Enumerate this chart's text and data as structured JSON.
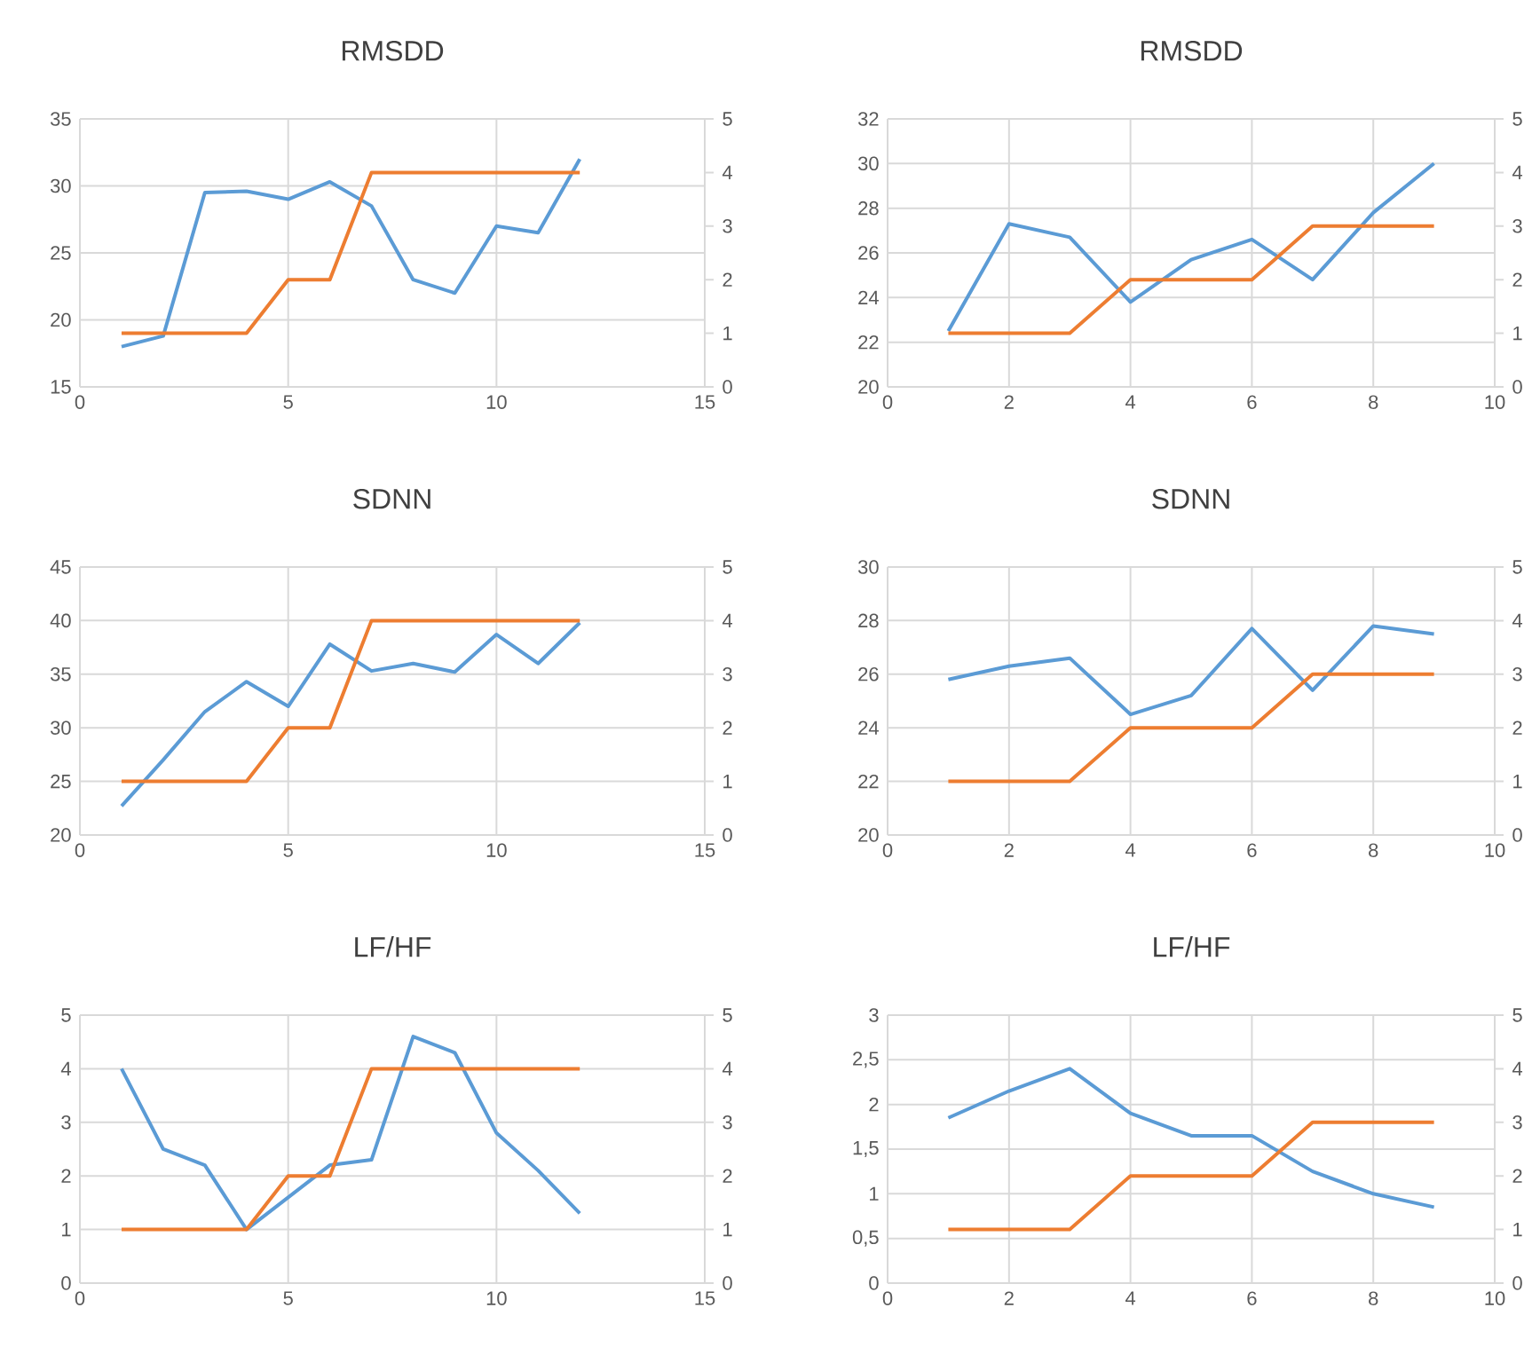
{
  "chart_data": [
    {
      "type": "line",
      "title": "RMSDD",
      "x": [
        1,
        2,
        3,
        4,
        5,
        6,
        7,
        8,
        9,
        10,
        11,
        12
      ],
      "xlim": [
        0,
        15
      ],
      "xticks": [
        0,
        5,
        10,
        15
      ],
      "ylim": [
        15,
        35
      ],
      "yticks": [
        15,
        20,
        25,
        30,
        35
      ],
      "y2lim": [
        0,
        5
      ],
      "y2ticks": [
        0,
        1,
        2,
        3,
        4,
        5
      ],
      "grid": true,
      "line_style": "solid",
      "series": [
        {
          "color": "#5b9bd5",
          "values": [
            18,
            18.8,
            29.5,
            29.6,
            29,
            30.3,
            28.5,
            23,
            22,
            27,
            26.5,
            32
          ]
        },
        {
          "color": "#ed7d31",
          "axis": "y2",
          "values": [
            1,
            1,
            1,
            1,
            2,
            2,
            4,
            4,
            4,
            4,
            4,
            4
          ]
        }
      ]
    },
    {
      "type": "line",
      "title": "RMSDD",
      "x": [
        1,
        2,
        3,
        4,
        5,
        6,
        7,
        8,
        9
      ],
      "xlim": [
        0,
        10
      ],
      "xticks": [
        0,
        2,
        4,
        6,
        8,
        10
      ],
      "ylim": [
        20,
        32
      ],
      "yticks": [
        20,
        22,
        24,
        26,
        28,
        30,
        32
      ],
      "y2lim": [
        0,
        5
      ],
      "y2ticks": [
        0,
        1,
        2,
        3,
        4,
        5
      ],
      "grid": true,
      "line_style": "solid",
      "series": [
        {
          "color": "#5b9bd5",
          "values": [
            22.5,
            27.3,
            26.7,
            23.8,
            25.7,
            26.6,
            24.8,
            27.8,
            30
          ]
        },
        {
          "color": "#ed7d31",
          "axis": "y2",
          "values": [
            1,
            1,
            1,
            2,
            2,
            2,
            3,
            3,
            3
          ]
        }
      ]
    },
    {
      "type": "line",
      "title": "SDNN",
      "x": [
        1,
        2,
        3,
        4,
        5,
        6,
        7,
        8,
        9,
        10,
        11,
        12
      ],
      "xlim": [
        0,
        15
      ],
      "xticks": [
        0,
        5,
        10,
        15
      ],
      "ylim": [
        20,
        45
      ],
      "yticks": [
        20,
        25,
        30,
        35,
        40,
        45
      ],
      "y2lim": [
        0,
        5
      ],
      "y2ticks": [
        0,
        1,
        2,
        3,
        4,
        5
      ],
      "grid": true,
      "line_style": "solid",
      "series": [
        {
          "color": "#5b9bd5",
          "values": [
            22.7,
            27,
            31.5,
            34.3,
            32,
            37.8,
            35.3,
            36,
            35.2,
            38.7,
            36,
            39.8
          ]
        },
        {
          "color": "#ed7d31",
          "axis": "y2",
          "values": [
            1,
            1,
            1,
            1,
            2,
            2,
            4,
            4,
            4,
            4,
            4,
            4
          ]
        }
      ]
    },
    {
      "type": "line",
      "title": "SDNN",
      "x": [
        1,
        2,
        3,
        4,
        5,
        6,
        7,
        8,
        9
      ],
      "xlim": [
        0,
        10
      ],
      "xticks": [
        0,
        2,
        4,
        6,
        8,
        10
      ],
      "ylim": [
        20,
        30
      ],
      "yticks": [
        20,
        22,
        24,
        26,
        28,
        30
      ],
      "y2lim": [
        0,
        5
      ],
      "y2ticks": [
        0,
        1,
        2,
        3,
        4,
        5
      ],
      "grid": true,
      "line_style": "solid",
      "series": [
        {
          "color": "#5b9bd5",
          "values": [
            25.8,
            26.3,
            26.6,
            24.5,
            25.2,
            27.7,
            25.4,
            27.8,
            27.5
          ]
        },
        {
          "color": "#ed7d31",
          "axis": "y2",
          "values": [
            1,
            1,
            1,
            2,
            2,
            2,
            3,
            3,
            3
          ]
        }
      ]
    },
    {
      "type": "line",
      "title": "LF/HF",
      "x": [
        1,
        2,
        3,
        4,
        5,
        6,
        7,
        8,
        9,
        10,
        11,
        12
      ],
      "xlim": [
        0,
        15
      ],
      "xticks": [
        0,
        5,
        10,
        15
      ],
      "ylim": [
        0,
        5
      ],
      "yticks": [
        0,
        1,
        2,
        3,
        4,
        5
      ],
      "y2lim": [
        0,
        5
      ],
      "y2ticks": [
        0,
        1,
        2,
        3,
        4,
        5
      ],
      "grid": true,
      "line_style": "solid",
      "series": [
        {
          "color": "#5b9bd5",
          "values": [
            4,
            2.5,
            2.2,
            1,
            1.6,
            2.2,
            2.3,
            4.6,
            4.3,
            2.8,
            2.1,
            1.3
          ]
        },
        {
          "color": "#ed7d31",
          "axis": "y2",
          "values": [
            1,
            1,
            1,
            1,
            2,
            2,
            4,
            4,
            4,
            4,
            4,
            4
          ]
        }
      ]
    },
    {
      "type": "line",
      "title": "LF/HF",
      "x": [
        1,
        2,
        3,
        4,
        5,
        6,
        7,
        8,
        9
      ],
      "xlim": [
        0,
        10
      ],
      "xticks": [
        0,
        2,
        4,
        6,
        8,
        10
      ],
      "ylim": [
        0,
        3
      ],
      "yticks": [
        0,
        {
          "value": 0.5,
          "label": "0,5"
        },
        1,
        {
          "value": 1.5,
          "label": "1,5"
        },
        2,
        {
          "value": 2.5,
          "label": "2,5"
        },
        3
      ],
      "y2lim": [
        0,
        5
      ],
      "y2ticks": [
        0,
        1,
        2,
        3,
        4,
        5
      ],
      "grid": true,
      "line_style": "solid",
      "series": [
        {
          "color": "#5b9bd5",
          "values": [
            1.85,
            2.15,
            2.4,
            1.9,
            1.65,
            1.65,
            1.25,
            1.0,
            0.85
          ]
        },
        {
          "color": "#ed7d31",
          "axis": "y2",
          "values": [
            1,
            1,
            1,
            2,
            2,
            2,
            3,
            3,
            3
          ]
        }
      ]
    }
  ]
}
